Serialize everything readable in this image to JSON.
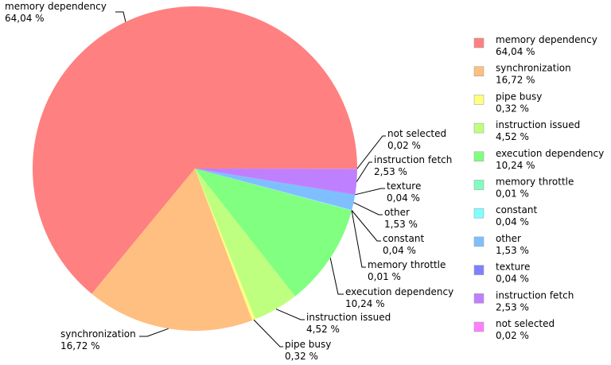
{
  "chart_data": {
    "type": "pie",
    "title": "",
    "legend_position": "right",
    "slices": [
      {
        "name": "memory dependency",
        "value": 64.04,
        "label": "64,04 %",
        "color": "#ff8080"
      },
      {
        "name": "synchronization",
        "value": 16.72,
        "label": "16,72 %",
        "color": "#ffbf80"
      },
      {
        "name": "pipe busy",
        "value": 0.32,
        "label": "0,32 %",
        "color": "#ffff80"
      },
      {
        "name": "instruction issued",
        "value": 4.52,
        "label": "4,52 %",
        "color": "#bfff80"
      },
      {
        "name": "execution dependency",
        "value": 10.24,
        "label": "10,24 %",
        "color": "#80ff80"
      },
      {
        "name": "memory throttle",
        "value": 0.01,
        "label": "0,01 %",
        "color": "#80ffbf"
      },
      {
        "name": "constant",
        "value": 0.04,
        "label": "0,04 %",
        "color": "#80ffff"
      },
      {
        "name": "other",
        "value": 1.53,
        "label": "1,53 %",
        "color": "#80bfff"
      },
      {
        "name": "texture",
        "value": 0.04,
        "label": "0,04 %",
        "color": "#8080ff"
      },
      {
        "name": "instruction fetch",
        "value": 2.53,
        "label": "2,53 %",
        "color": "#bf80ff"
      },
      {
        "name": "not selected",
        "value": 0.02,
        "label": "0,02 %",
        "color": "#ff80ff"
      }
    ]
  }
}
